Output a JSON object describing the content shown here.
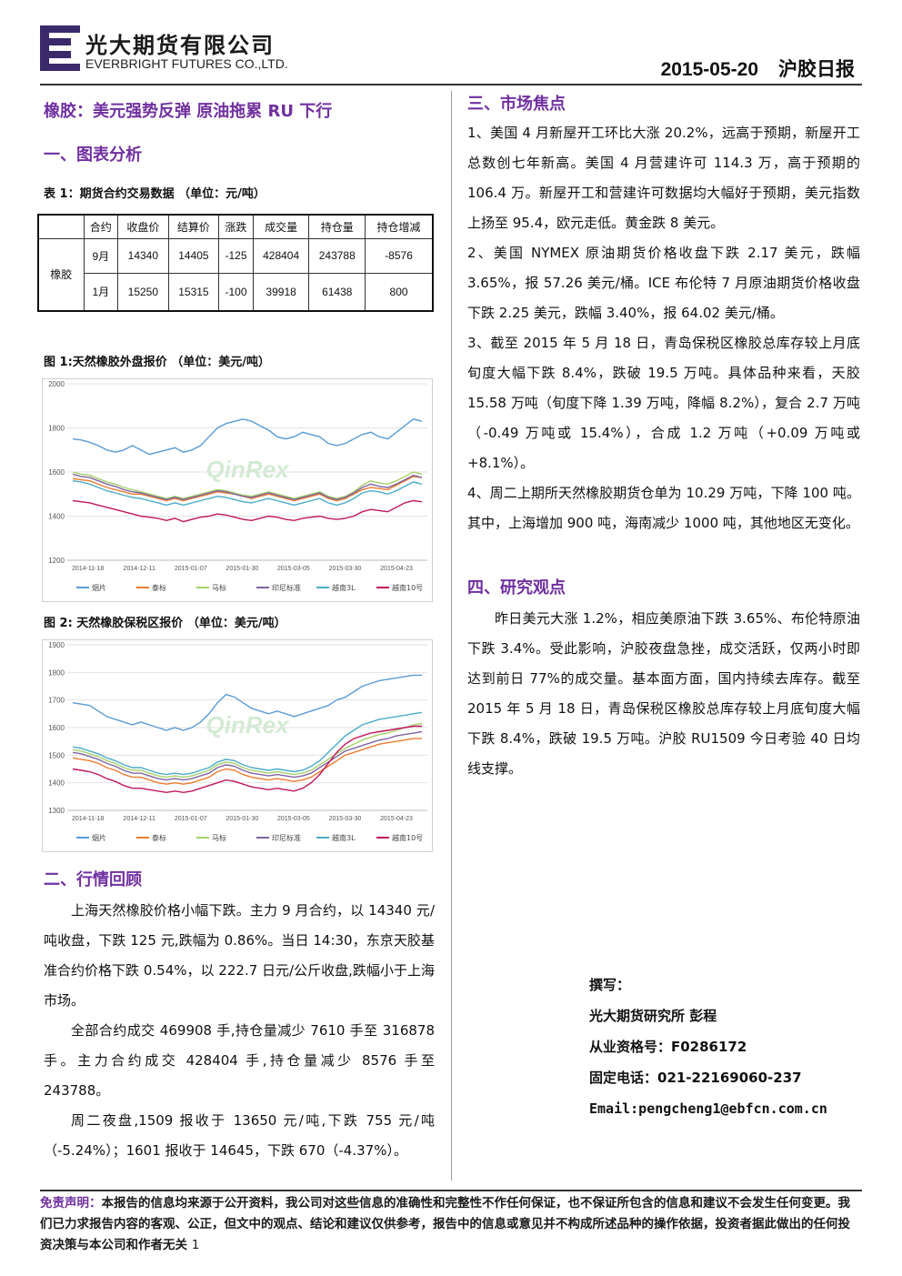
{
  "header": {
    "company_cn": "光大期货有限公司",
    "company_en": "EVERBRIGHT FUTURES CO.,LTD.",
    "date": "2015-05-20",
    "report_title": "沪胶日报"
  },
  "main_title": "橡胶：美元强势反弹 原油拖累 RU 下行",
  "section1": {
    "title": "一、图表分析",
    "table_caption": "表 1：期货合约交易数据 （单位：元/吨）",
    "table": {
      "headers": [
        "合约",
        "收盘价",
        "结算价",
        "涨跌",
        "成交量",
        "持仓量",
        "持仓增减"
      ],
      "product": "橡胶",
      "rows": [
        [
          "9月",
          "14340",
          "14405",
          "-125",
          "428404",
          "243788",
          "-8576"
        ],
        [
          "1月",
          "15250",
          "15315",
          "-100",
          "39918",
          "61438",
          "800"
        ]
      ]
    },
    "fig1_caption": "图 1:天然橡胶外盘报价 （单位：美元/吨）",
    "fig2_caption": "图 2: 天然橡胶保税区报价 （单位：美元/吨）"
  },
  "chart_data": [
    {
      "type": "line",
      "title": "图 1:天然橡胶外盘报价 （单位：美元/吨）",
      "ylim": [
        1200,
        2000
      ],
      "yticks": [
        1200,
        1400,
        1600,
        1800,
        2000
      ],
      "xticks": [
        "2014-11-18",
        "2014-12-11",
        "2015-01-07",
        "2015-01-30",
        "2015-03-05",
        "2015-03-30",
        "2015-04-23"
      ],
      "legend_position": "bottom",
      "grid": true,
      "watermark": "QinRex",
      "series": [
        {
          "name": "烟片",
          "color": "#5b9bd5",
          "values": [
            1750,
            1745,
            1735,
            1720,
            1700,
            1690,
            1700,
            1720,
            1700,
            1680,
            1690,
            1700,
            1710,
            1690,
            1700,
            1720,
            1760,
            1800,
            1820,
            1830,
            1840,
            1830,
            1810,
            1790,
            1760,
            1750,
            1760,
            1780,
            1770,
            1760,
            1730,
            1720,
            1730,
            1750,
            1770,
            1780,
            1760,
            1750,
            1780,
            1810,
            1840,
            1830
          ]
        },
        {
          "name": "泰标",
          "color": "#ed7d31",
          "values": [
            1570,
            1565,
            1560,
            1545,
            1530,
            1520,
            1510,
            1500,
            1500,
            1490,
            1480,
            1470,
            1480,
            1470,
            1480,
            1490,
            1500,
            1510,
            1505,
            1500,
            1490,
            1480,
            1490,
            1500,
            1490,
            1480,
            1470,
            1480,
            1490,
            1500,
            1480,
            1470,
            1480,
            1500,
            1520,
            1530,
            1525,
            1520,
            1540,
            1560,
            1580,
            1575
          ]
        },
        {
          "name": "马标",
          "color": "#a5d06a",
          "values": [
            1600,
            1590,
            1585,
            1570,
            1555,
            1545,
            1530,
            1520,
            1510,
            1500,
            1490,
            1480,
            1490,
            1480,
            1490,
            1500,
            1510,
            1520,
            1515,
            1505,
            1495,
            1490,
            1500,
            1510,
            1500,
            1490,
            1480,
            1490,
            1500,
            1510,
            1490,
            1480,
            1490,
            1510,
            1540,
            1560,
            1550,
            1545,
            1560,
            1580,
            1600,
            1590
          ]
        },
        {
          "name": "印尼标准",
          "color": "#8064a2",
          "values": [
            1590,
            1580,
            1575,
            1560,
            1545,
            1535,
            1520,
            1510,
            1505,
            1495,
            1485,
            1475,
            1485,
            1475,
            1485,
            1495,
            1505,
            1515,
            1510,
            1500,
            1490,
            1485,
            1495,
            1505,
            1495,
            1485,
            1475,
            1485,
            1495,
            1505,
            1485,
            1475,
            1485,
            1505,
            1530,
            1545,
            1535,
            1530,
            1545,
            1565,
            1585,
            1575
          ]
        },
        {
          "name": "越南3L",
          "color": "#4bacc6",
          "values": [
            1560,
            1555,
            1545,
            1530,
            1515,
            1505,
            1495,
            1485,
            1480,
            1470,
            1460,
            1450,
            1460,
            1450,
            1460,
            1470,
            1480,
            1490,
            1485,
            1475,
            1465,
            1460,
            1470,
            1480,
            1470,
            1460,
            1450,
            1460,
            1470,
            1480,
            1460,
            1450,
            1460,
            1480,
            1505,
            1515,
            1510,
            1500,
            1515,
            1535,
            1555,
            1545
          ]
        },
        {
          "name": "越南10号",
          "color": "#c0185d",
          "values": [
            1470,
            1465,
            1460,
            1450,
            1440,
            1430,
            1420,
            1410,
            1400,
            1395,
            1390,
            1380,
            1390,
            1375,
            1385,
            1395,
            1400,
            1410,
            1405,
            1395,
            1385,
            1380,
            1390,
            1400,
            1395,
            1385,
            1380,
            1390,
            1395,
            1400,
            1390,
            1385,
            1390,
            1400,
            1420,
            1430,
            1425,
            1420,
            1440,
            1460,
            1470,
            1465
          ]
        }
      ]
    },
    {
      "type": "line",
      "title": "图 2: 天然橡胶保税区报价 （单位：美元/吨）",
      "ylim": [
        1300,
        1900
      ],
      "yticks": [
        1300,
        1400,
        1500,
        1600,
        1700,
        1800,
        1900
      ],
      "xticks": [
        "2014-11-18",
        "2014-12-11",
        "2015-01-07",
        "2015-01-30",
        "2015-03-05",
        "2015-03-30",
        "2015-04-23"
      ],
      "legend_position": "bottom",
      "grid": true,
      "watermark": "QinRex",
      "series": [
        {
          "name": "烟片",
          "color": "#5b9bd5",
          "values": [
            1690,
            1685,
            1680,
            1660,
            1640,
            1630,
            1620,
            1610,
            1620,
            1610,
            1600,
            1590,
            1600,
            1590,
            1600,
            1620,
            1650,
            1690,
            1720,
            1710,
            1690,
            1670,
            1660,
            1650,
            1660,
            1650,
            1640,
            1650,
            1660,
            1670,
            1680,
            1700,
            1710,
            1730,
            1750,
            1760,
            1770,
            1775,
            1780,
            1785,
            1790,
            1790
          ]
        },
        {
          "name": "泰标",
          "color": "#ed7d31",
          "values": [
            1490,
            1485,
            1480,
            1470,
            1455,
            1445,
            1430,
            1420,
            1420,
            1410,
            1400,
            1395,
            1400,
            1395,
            1400,
            1410,
            1420,
            1440,
            1450,
            1445,
            1430,
            1420,
            1415,
            1410,
            1415,
            1410,
            1405,
            1410,
            1420,
            1440,
            1460,
            1480,
            1500,
            1510,
            1520,
            1530,
            1540,
            1545,
            1550,
            1555,
            1560,
            1560
          ]
        },
        {
          "name": "马标",
          "color": "#a5d06a",
          "values": [
            1520,
            1515,
            1505,
            1495,
            1480,
            1470,
            1455,
            1445,
            1445,
            1435,
            1425,
            1420,
            1425,
            1420,
            1425,
            1435,
            1445,
            1465,
            1475,
            1470,
            1455,
            1445,
            1440,
            1435,
            1440,
            1435,
            1430,
            1435,
            1445,
            1465,
            1485,
            1505,
            1525,
            1540,
            1555,
            1565,
            1575,
            1580,
            1590,
            1600,
            1610,
            1615
          ]
        },
        {
          "name": "印尼标准",
          "color": "#8064a2",
          "values": [
            1510,
            1505,
            1495,
            1485,
            1470,
            1460,
            1445,
            1435,
            1435,
            1425,
            1415,
            1410,
            1415,
            1410,
            1415,
            1425,
            1435,
            1455,
            1465,
            1460,
            1445,
            1435,
            1430,
            1425,
            1430,
            1425,
            1420,
            1425,
            1435,
            1455,
            1475,
            1495,
            1515,
            1525,
            1535,
            1545,
            1555,
            1560,
            1570,
            1575,
            1580,
            1585
          ]
        },
        {
          "name": "越南3L",
          "color": "#4bacc6",
          "values": [
            1530,
            1525,
            1515,
            1505,
            1490,
            1480,
            1465,
            1455,
            1455,
            1445,
            1435,
            1430,
            1435,
            1430,
            1435,
            1445,
            1455,
            1475,
            1485,
            1480,
            1465,
            1455,
            1450,
            1445,
            1450,
            1445,
            1440,
            1445,
            1460,
            1480,
            1510,
            1540,
            1570,
            1590,
            1610,
            1620,
            1630,
            1635,
            1640,
            1645,
            1650,
            1655
          ]
        },
        {
          "name": "越南10号",
          "color": "#c0185d",
          "values": [
            1450,
            1445,
            1440,
            1430,
            1415,
            1405,
            1390,
            1380,
            1380,
            1375,
            1370,
            1365,
            1370,
            1365,
            1370,
            1380,
            1390,
            1400,
            1410,
            1405,
            1395,
            1385,
            1380,
            1375,
            1380,
            1375,
            1370,
            1380,
            1400,
            1430,
            1470,
            1510,
            1540,
            1560,
            1570,
            1580,
            1585,
            1590,
            1595,
            1600,
            1605,
            1605
          ]
        }
      ]
    }
  ],
  "section2": {
    "title": "二、行情回顾",
    "paragraphs": [
      "上海天然橡胶价格小幅下跌。主力 9 月合约，以 14340 元/吨收盘，下跌 125 元,跌幅为 0.86%。当日 14:30，东京天胶基准合约价格下跌 0.54%，以 222.7 日元/公斤收盘,跌幅小于上海市场。",
      "全部合约成交 469908 手,持仓量减少 7610 手至 316878 手。主力合约成交 428404 手,持仓量减少 8576 手至 243788。",
      "周二夜盘,1509 报收于 13650 元/吨,下跌 755 元/吨（-5.24%）；1601 报收于 14645，下跌 670（-4.37%）。"
    ]
  },
  "section3": {
    "title": "三、市场焦点",
    "items": [
      "1、美国 4 月新屋开工环比大涨 20.2%，远高于预期，新屋开工总数创七年新高。美国 4 月营建许可 114.3 万，高于预期的 106.4 万。新屋开工和营建许可数据均大幅好于预期，美元指数上扬至 95.4，欧元走低。黄金跌 8 美元。",
      "2、美国 NYMEX 原油期货价格收盘下跌 2.17 美元，跌幅 3.65%，报 57.26 美元/桶。ICE 布伦特 7 月原油期货价格收盘下跌 2.25 美元，跌幅 3.40%，报 64.02 美元/桶。",
      "3、截至 2015 年 5 月 18 日，青岛保税区橡胶总库存较上月底旬度大幅下跌 8.4%，跌破 19.5 万吨。具体品种来看，天胶 15.58 万吨（旬度下降 1.39 万吨，降幅 8.2%），复合 2.7 万吨（-0.49 万吨或 15.4%），合成 1.2 万吨（+0.09 万吨或+8.1%）。",
      "4、周二上期所天然橡胶期货仓单为 10.29 万吨，下降 100 吨。其中，上海增加 900 吨，海南减少 1000 吨，其他地区无变化。"
    ]
  },
  "section4": {
    "title": "四、研究观点",
    "paragraph": "昨日美元大涨 1.2%，相应美原油下跌 3.65%、布伦特原油下跌 3.4%。受此影响，沪胶夜盘急挫，成交活跃，仅两小时即达到前日 77%的成交量。基本面方面，国内持续去库存。截至 2015 年 5 月 18 日，青岛保税区橡胶总库存较上月底旬度大幅下跌 8.4%，跌破 19.5 万吨。沪胶 RU1509 今日考验 40 日均线支撑。"
  },
  "author": {
    "label": "撰写：",
    "name": "光大期货研究所 彭程",
    "license": "从业资格号：F0286172",
    "phone": "固定电话：021-22169060-237",
    "email": "Email:pengcheng1@ebfcn.com.cn"
  },
  "footer": {
    "label": "免责声明：",
    "text": "本报告的信息均来源于公开资料，我公司对这些信息的准确性和完整性不作任何保证，也不保证所包含的信息和建议不会发生任何变更。我们已力求报告内容的客观、公正，但文中的观点、结论和建议仅供参考，报告中的信息或意见并不构成所述品种的操作依据，投资者据此做出的任何投资决策与本公司和作者无关",
    "page": "1"
  }
}
